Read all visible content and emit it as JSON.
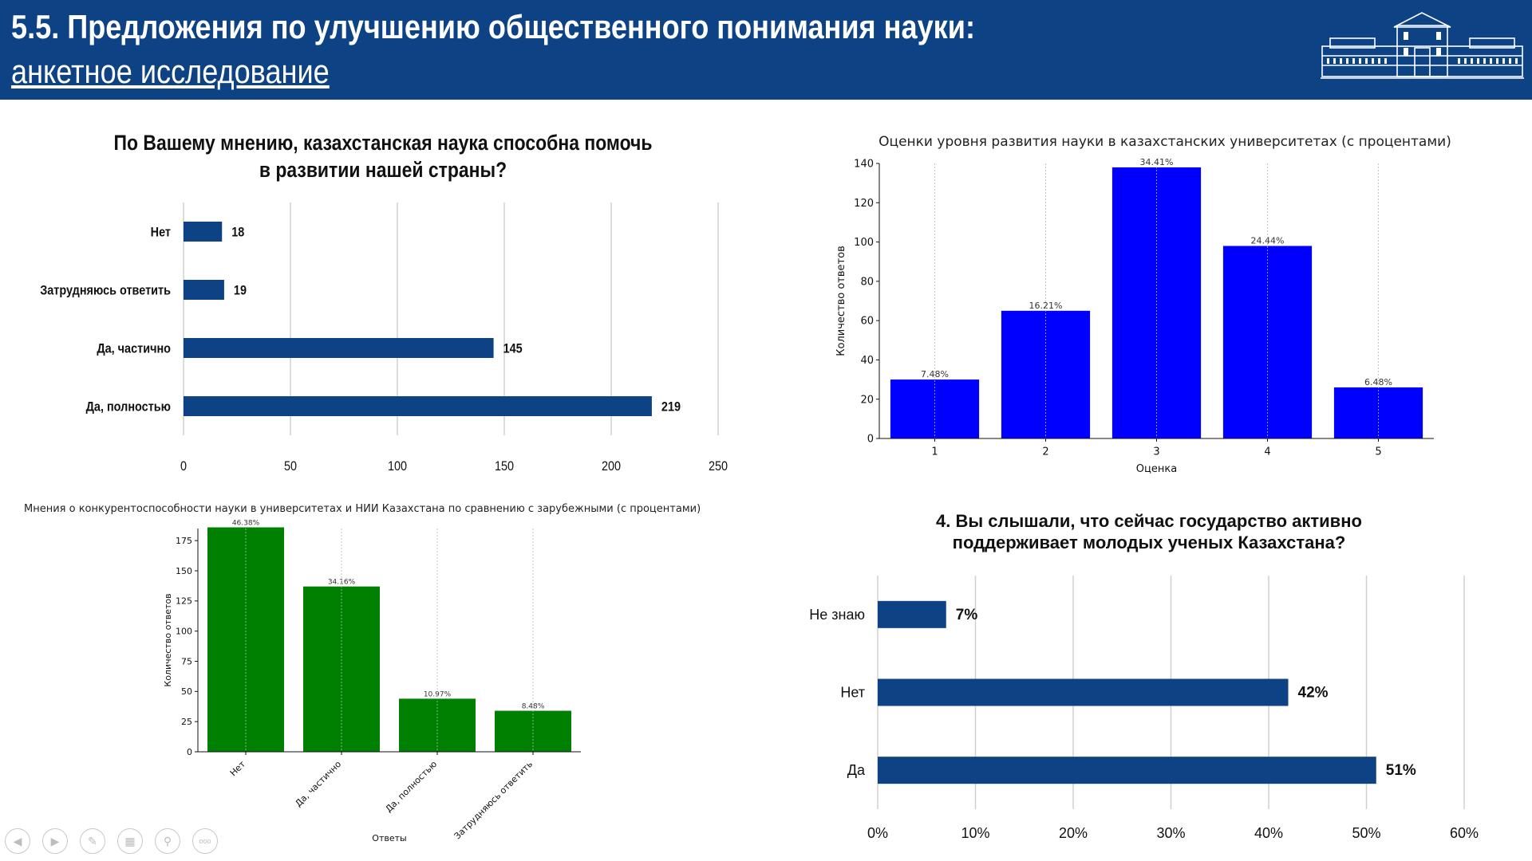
{
  "header": {
    "title": "5.5. Предложения по улучшению общественного понимания науки:",
    "subtitle": "анкетное исследование",
    "logo_icon": "university-building-icon"
  },
  "colors": {
    "header_bg": "#0d4384",
    "dark_blue": "#0d4384",
    "bright_blue": "#0000ff",
    "green": "#008000"
  },
  "chart_data": [
    {
      "id": "help",
      "type": "bar",
      "orientation": "horizontal",
      "title_line1": "По Вашему мнению, казахстанская наука способна помочь",
      "title_line2": "в развитии нашей страны?",
      "categories": [
        "Нет",
        "Затрудняюсь ответить",
        "Да, частично",
        "Да, полностью"
      ],
      "values": [
        18,
        19,
        145,
        219
      ],
      "value_labels": [
        "18",
        "19",
        "145",
        "219"
      ],
      "xlim": [
        0,
        250
      ],
      "ticks": [
        0,
        50,
        100,
        150,
        200,
        250
      ],
      "tick_labels": [
        "0",
        "50",
        "100",
        "150",
        "200",
        "250"
      ],
      "grid": true
    },
    {
      "id": "rating",
      "type": "bar",
      "title": "Оценки уровня развития науки в казахстанских университетах (с процентами)",
      "xlabel": "Оценка",
      "ylabel": "Количество ответов",
      "categories": [
        "1",
        "2",
        "3",
        "4",
        "5"
      ],
      "values": [
        30,
        65,
        138,
        98,
        26
      ],
      "value_labels": [
        "7.48%",
        "16.21%",
        "34.41%",
        "24.44%",
        "6.48%"
      ],
      "ylim": [
        0,
        140
      ],
      "ticks": [
        0,
        20,
        40,
        60,
        80,
        100,
        120,
        140
      ],
      "tick_labels": [
        "0",
        "20",
        "40",
        "60",
        "80",
        "100",
        "120",
        "140"
      ],
      "grid": true
    },
    {
      "id": "compete",
      "type": "bar",
      "title": "Мнения о конкурентоспособности науки в университетах и НИИ Казахстана по сравнению с зарубежными (с процентами)",
      "xlabel": "Ответы",
      "ylabel": "Количество ответов",
      "categories": [
        "Нет",
        "Да, частично",
        "Да, полностью",
        "Затрудняюсь ответить"
      ],
      "values": [
        186,
        137,
        44,
        34
      ],
      "value_labels": [
        "46.38%",
        "34.16%",
        "10.97%",
        "8.48%"
      ],
      "ylim": [
        0,
        185
      ],
      "ticks": [
        0,
        25,
        50,
        75,
        100,
        125,
        150,
        175
      ],
      "tick_labels": [
        "0",
        "25",
        "50",
        "75",
        "100",
        "125",
        "150",
        "175"
      ],
      "grid": true
    },
    {
      "id": "support",
      "type": "bar",
      "orientation": "horizontal",
      "title_line1": "4. Вы слышали, что сейчас государство активно",
      "title_line2": "поддерживает молодых ученых Казахстана?",
      "categories": [
        "Не знаю",
        "Нет",
        "Да"
      ],
      "values": [
        7,
        42,
        51
      ],
      "value_labels": [
        "7%",
        "42%",
        "51%"
      ],
      "xlim": [
        0,
        60
      ],
      "ticks": [
        0,
        10,
        20,
        30,
        40,
        50,
        60
      ],
      "tick_labels": [
        "0%",
        "10%",
        "20%",
        "30%",
        "40%",
        "50%",
        "60%"
      ],
      "grid": true
    }
  ],
  "nav": {
    "icons": [
      "prev-icon",
      "next-icon",
      "pen-icon",
      "slides-icon",
      "zoom-icon",
      "more-icon"
    ],
    "more_label": "ooo"
  }
}
